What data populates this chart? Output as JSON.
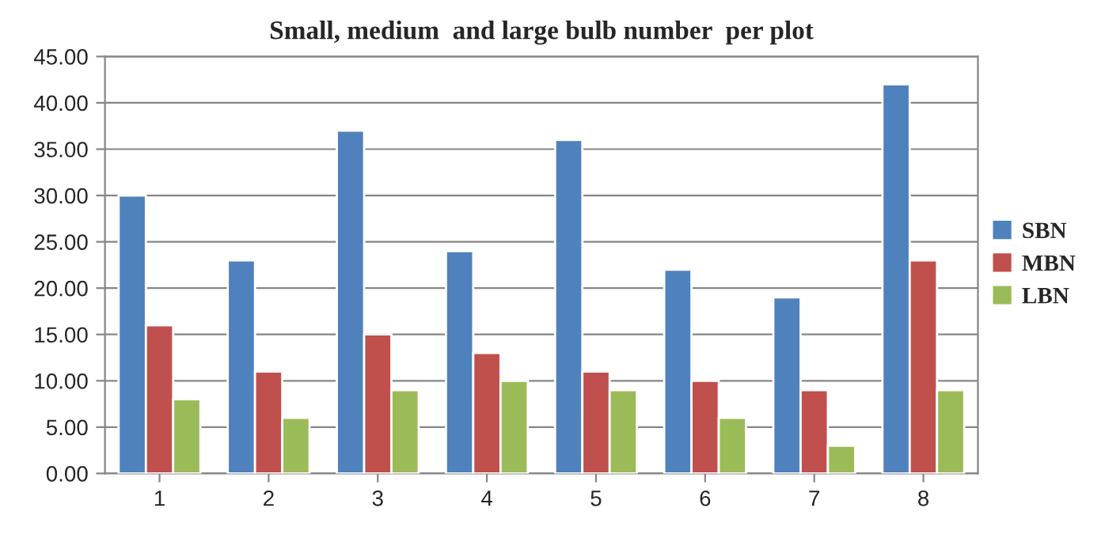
{
  "chart_data": {
    "type": "bar",
    "title": "Small, medium  and large bulb number  per plot",
    "categories": [
      "1",
      "2",
      "3",
      "4",
      "5",
      "6",
      "7",
      "8"
    ],
    "series": [
      {
        "name": "SBN",
        "color": "#4f81bd",
        "values": [
          30,
          23,
          37,
          24,
          36,
          22,
          19,
          42
        ]
      },
      {
        "name": "MBN",
        "color": "#c0504d",
        "values": [
          16,
          11,
          15,
          13,
          11,
          10,
          9,
          23
        ]
      },
      {
        "name": "LBN",
        "color": "#9bbb59",
        "values": [
          8,
          6,
          9,
          10,
          9,
          6,
          3,
          9
        ]
      }
    ],
    "ylim": [
      0,
      45
    ],
    "yticks": [
      {
        "value": 0,
        "label": "0.00"
      },
      {
        "value": 5,
        "label": "5.00"
      },
      {
        "value": 10,
        "label": "10.00"
      },
      {
        "value": 15,
        "label": "15.00"
      },
      {
        "value": 20,
        "label": "20.00"
      },
      {
        "value": 25,
        "label": "25.00"
      },
      {
        "value": 30,
        "label": "30.00"
      },
      {
        "value": 35,
        "label": "35.00"
      },
      {
        "value": 40,
        "label": "40.00"
      },
      {
        "value": 45,
        "label": "45.00"
      }
    ],
    "grid": "y",
    "legend": "right"
  }
}
